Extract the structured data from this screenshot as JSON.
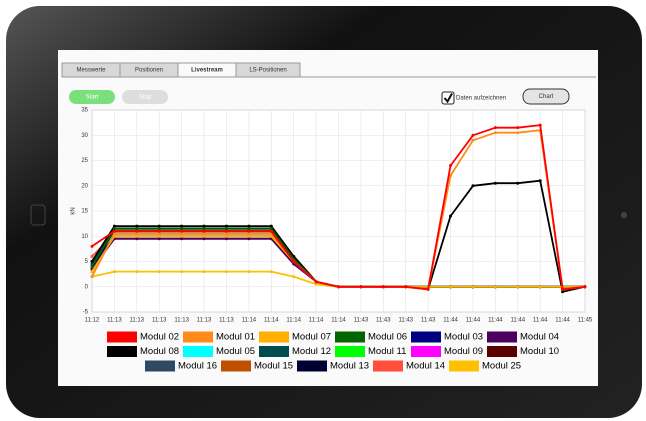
{
  "tabs": [
    "Messwerte",
    "Positionen",
    "Livestream",
    "LS-Positionen"
  ],
  "buttons": {
    "start": "Start",
    "stop": "Stop",
    "chart": "Chart"
  },
  "checkbox": {
    "label": "Daten aufzeichnen",
    "checked": true
  },
  "chart_data": {
    "type": "line",
    "y_label": "kN",
    "categories": [
      "11:12",
      "11:13",
      "11:13",
      "11:13",
      "11:13",
      "11:13",
      "11:13",
      "11:14",
      "11:14",
      "11:14",
      "11:14",
      "11:14",
      "11:43",
      "11:43",
      "11:43",
      "11:43",
      "11:44",
      "11:44",
      "11:44",
      "11:44",
      "11:44",
      "11:44",
      "11:45"
    ],
    "ylim": [
      -5,
      35
    ],
    "yticks": [
      -5,
      0,
      5,
      10,
      15,
      20,
      25,
      30,
      35
    ],
    "grid": true,
    "series": [
      {
        "name": "Modul 02",
        "color": "#ff0000",
        "values": [
          8,
          11,
          11,
          11,
          11,
          11,
          11,
          11,
          11,
          5,
          1,
          0,
          0,
          0,
          0,
          -0.5,
          24,
          30,
          31.5,
          31.5,
          32,
          -0.5,
          0
        ]
      },
      {
        "name": "Modul 01",
        "color": "#ff8c1a",
        "values": [
          2,
          10.5,
          10.5,
          10.5,
          10.5,
          10.5,
          10.5,
          10.5,
          10.5,
          5,
          1,
          0,
          0,
          0,
          0,
          -0.5,
          22,
          29,
          30.5,
          30.5,
          31,
          -0.5,
          0
        ]
      },
      {
        "name": "Modul 07",
        "color": "#ffb000",
        "values": [
          3,
          10,
          10,
          10,
          10,
          10,
          10,
          10,
          10,
          5,
          1,
          0,
          0,
          0,
          0,
          0,
          0,
          0,
          0,
          0,
          0,
          0,
          0
        ]
      },
      {
        "name": "Modul 06",
        "color": "#006400",
        "values": [
          4,
          11.5,
          11.5,
          11.5,
          11.5,
          11.5,
          11.5,
          11.5,
          11.5,
          5.5,
          1,
          0,
          0,
          0,
          0,
          0,
          0,
          0,
          0,
          0,
          0,
          0,
          0
        ]
      },
      {
        "name": "Modul 03",
        "color": "#000080",
        "values": [
          4,
          10,
          10,
          10,
          10,
          10,
          10,
          10,
          10,
          5,
          1,
          0,
          0,
          0,
          0,
          0,
          0,
          0,
          0,
          0,
          0,
          0,
          0
        ]
      },
      {
        "name": "Modul 04",
        "color": "#4b0060",
        "values": [
          3.5,
          9.5,
          9.5,
          9.5,
          9.5,
          9.5,
          9.5,
          9.5,
          9.5,
          4.5,
          1,
          0,
          0,
          0,
          0,
          0,
          0,
          0,
          0,
          0,
          0,
          0,
          0
        ]
      },
      {
        "name": "Modul 08",
        "color": "#000000",
        "values": [
          5,
          12,
          12,
          12,
          12,
          12,
          12,
          12,
          12,
          6,
          1,
          0,
          0,
          0,
          0,
          -0.5,
          14,
          20,
          20.5,
          20.5,
          21,
          -1,
          0
        ]
      },
      {
        "name": "Modul 05",
        "color": "#00ffff",
        "values": [
          3,
          10.5,
          10.5,
          10.5,
          10.5,
          10.5,
          10.5,
          10.5,
          10.5,
          5,
          1,
          0,
          0,
          0,
          0,
          0,
          0,
          0,
          0,
          0,
          0,
          0,
          0
        ]
      },
      {
        "name": "Modul 12",
        "color": "#004d4d",
        "values": [
          4.5,
          11.5,
          11.5,
          11.5,
          11.5,
          11.5,
          11.5,
          11.5,
          11.5,
          5.5,
          1,
          0,
          0,
          0,
          0,
          0,
          0,
          0,
          0,
          0,
          0,
          0,
          0
        ]
      },
      {
        "name": "Modul 11",
        "color": "#00ff00",
        "values": [
          3,
          10.5,
          10.5,
          10.5,
          10.5,
          10.5,
          10.5,
          10.5,
          10.5,
          5,
          1,
          0,
          0,
          0,
          0,
          0,
          0,
          0,
          0,
          0,
          0,
          0,
          0
        ]
      },
      {
        "name": "Modul 09",
        "color": "#ff00ff",
        "values": [
          3,
          10,
          10,
          10,
          10,
          10,
          10,
          10,
          10,
          5,
          1,
          0,
          0,
          0,
          0,
          0,
          0,
          0,
          0,
          0,
          0,
          0,
          0
        ]
      },
      {
        "name": "Modul 10",
        "color": "#5a0000",
        "values": [
          4,
          11,
          11,
          11,
          11,
          11,
          11,
          11,
          11,
          5,
          1,
          0,
          0,
          0,
          0,
          0,
          0,
          0,
          0,
          0,
          0,
          0,
          0
        ]
      },
      {
        "name": "Modul 16",
        "color": "#2e4a62",
        "values": [
          4,
          11,
          11,
          11,
          11,
          11,
          11,
          11,
          11,
          5.5,
          1,
          0,
          0,
          0,
          0,
          0,
          0,
          0,
          0,
          0,
          0,
          0,
          0
        ]
      },
      {
        "name": "Modul 15",
        "color": "#c05000",
        "values": [
          3.5,
          10.5,
          10.5,
          10.5,
          10.5,
          10.5,
          10.5,
          10.5,
          10.5,
          5,
          1,
          0,
          0,
          0,
          0,
          0,
          0,
          0,
          0,
          0,
          0,
          0,
          0
        ]
      },
      {
        "name": "Modul 13",
        "color": "#000033",
        "values": [
          5,
          11.5,
          11.5,
          11.5,
          11.5,
          11.5,
          11.5,
          11.5,
          11.5,
          6,
          1,
          0,
          0,
          0,
          0,
          0,
          0,
          0,
          0,
          0,
          0,
          0,
          0
        ]
      },
      {
        "name": "Modul 14",
        "color": "#ff4f3a",
        "values": [
          6,
          10.5,
          10.5,
          10.5,
          10.5,
          10.5,
          10.5,
          10.5,
          10.5,
          5,
          1,
          0,
          0,
          0,
          0,
          0,
          0,
          0,
          0,
          0,
          0,
          0,
          0
        ]
      },
      {
        "name": "Modul 25",
        "color": "#ffc000",
        "values": [
          2,
          3,
          3,
          3,
          3,
          3,
          3,
          3,
          3,
          2,
          0.5,
          0,
          0,
          0,
          0,
          0,
          0,
          0,
          0,
          0,
          0,
          0,
          0
        ]
      }
    ]
  }
}
